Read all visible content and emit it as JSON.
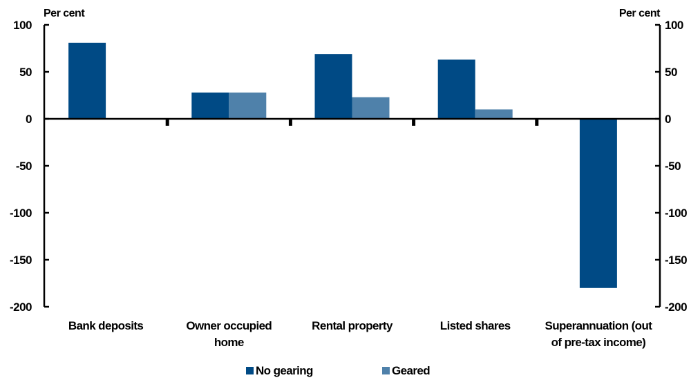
{
  "chart_data": {
    "type": "bar",
    "title": "",
    "xlabel": "",
    "ylabel_left": "Per cent",
    "ylabel_right": "Per cent",
    "ylim": [
      -200,
      100
    ],
    "yticks": [
      100,
      50,
      0,
      -50,
      -100,
      -150,
      -200
    ],
    "grid": false,
    "legend_position": "bottom",
    "categories": [
      "Bank deposits",
      "Owner occupied home",
      "Rental property",
      "Listed shares",
      "Superannuation (out of pre-tax income)"
    ],
    "category_lines": [
      [
        "Bank deposits"
      ],
      [
        "Owner occupied",
        "home"
      ],
      [
        "Rental property"
      ],
      [
        "Listed shares"
      ],
      [
        "Superannuation (out",
        "of pre-tax income)"
      ]
    ],
    "series": [
      {
        "name": "No gearing",
        "color": "#004a85",
        "values": [
          81,
          28,
          69,
          63,
          null
        ]
      },
      {
        "name": "Geared",
        "color": "#4f81aa",
        "values": [
          null,
          28,
          23,
          10,
          null
        ]
      }
    ],
    "extra_bars": [
      {
        "series": "No gearing",
        "category": "Superannuation (out of pre-tax income)",
        "value": -180
      }
    ]
  }
}
